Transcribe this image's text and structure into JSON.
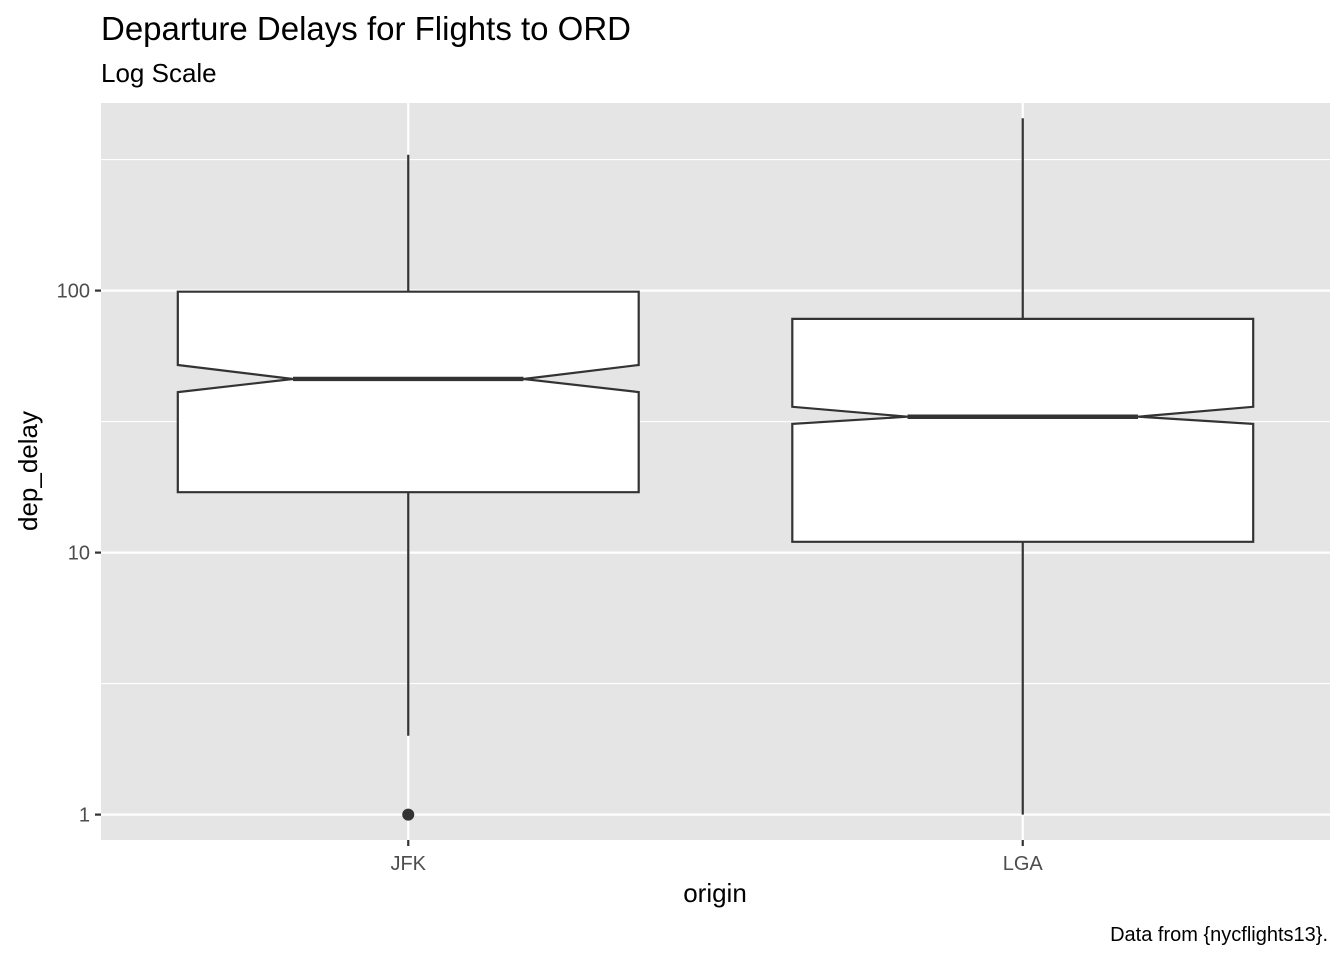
{
  "chart_data": {
    "type": "boxplot",
    "title": "Departure Delays for Flights to ORD",
    "subtitle": "Log Scale",
    "caption": "Data from {nycflights13}.",
    "xlabel": "origin",
    "ylabel": "dep_delay",
    "y_scale": "log10",
    "ylim": [
      0.8,
      520
    ],
    "y_ticks": [
      1,
      10,
      100
    ],
    "y_tick_labels": [
      "1",
      "10",
      "100"
    ],
    "categories": [
      "JFK",
      "LGA"
    ],
    "notched": true,
    "grid": true,
    "boxes": [
      {
        "category": "JFK",
        "whisker_low": 2,
        "q1": 17,
        "notch_low": 41,
        "median": 46,
        "notch_high": 52,
        "q3": 99,
        "whisker_high": 330,
        "outliers": [
          1
        ]
      },
      {
        "category": "LGA",
        "whisker_low": 1,
        "q1": 11,
        "notch_low": 31,
        "median": 33,
        "notch_high": 36,
        "q3": 78,
        "whisker_high": 455,
        "outliers": []
      }
    ],
    "colors": {
      "panel_background": "#e5e5e5",
      "grid": "#ffffff",
      "box_fill": "#ffffff",
      "box_stroke": "#333333",
      "tick_label": "#4d4d4d",
      "outlier": "#333333"
    }
  }
}
